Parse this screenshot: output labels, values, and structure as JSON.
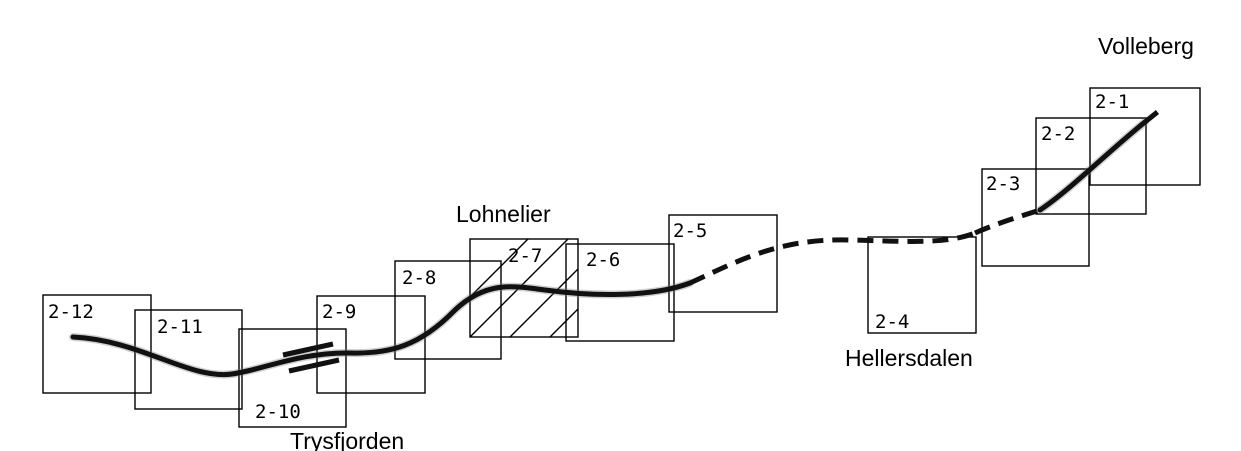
{
  "places": {
    "volleberg": "Volleberg",
    "lohnelier": "Lohnelier",
    "hellersdalen": "Hellersdalen",
    "trysfjorden": "Trysfjorden"
  },
  "sheets": [
    "2-1",
    "2-2",
    "2-3",
    "2-4",
    "2-5",
    "2-6",
    "2-7",
    "2-8",
    "2-9",
    "2-10",
    "2-11",
    "2-12"
  ]
}
